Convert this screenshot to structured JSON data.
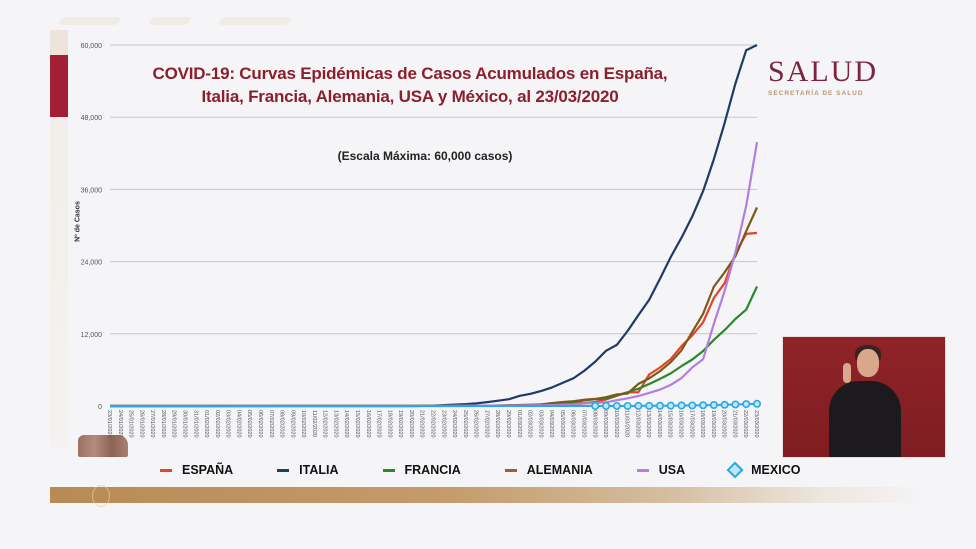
{
  "slide": {
    "title_line1": "COVID-19: Curvas Epidémicas de Casos Acumulados en España,",
    "title_line2": "Italia, Francia, Alemania, USA y México, al 23/03/2020",
    "subtitle": "(Escala Máxima: 60,000 casos)",
    "brand": {
      "name": "SALUD",
      "subtitle": "SECRETARÍA DE SALUD"
    },
    "interpreter_label": "sign-language-interpreter"
  },
  "chart_data": {
    "type": "line",
    "title": "COVID-19: Curvas Epidémicas de Casos Acumulados en España, Italia, Francia, Alemania, USA y México, al 23/03/2020",
    "subtitle": "(Escala Máxima: 60,000 casos)",
    "xlabel": "",
    "ylabel": "Nº de Casos",
    "ylim": [
      0,
      60000
    ],
    "yticks": [
      0,
      12000,
      24000,
      36000,
      48000,
      60000
    ],
    "ytick_labels": [
      "0",
      "12,000",
      "24,000",
      "36,000",
      "48,000",
      "60,000"
    ],
    "grid": true,
    "legend_position": "bottom",
    "x": [
      "23/01/2020",
      "24/01/2020",
      "25/01/2020",
      "26/01/2020",
      "27/01/2020",
      "28/01/2020",
      "29/01/2020",
      "30/01/2020",
      "31/01/2020",
      "01/02/2020",
      "02/02/2020",
      "03/02/2020",
      "04/02/2020",
      "05/02/2020",
      "06/02/2020",
      "07/02/2020",
      "08/02/2020",
      "09/02/2020",
      "10/02/2020",
      "11/02/2020",
      "12/02/2020",
      "13/02/2020",
      "14/02/2020",
      "15/02/2020",
      "16/02/2020",
      "17/02/2020",
      "18/02/2020",
      "19/02/2020",
      "20/02/2020",
      "21/02/2020",
      "22/02/2020",
      "23/02/2020",
      "24/02/2020",
      "25/02/2020",
      "26/02/2020",
      "27/02/2020",
      "28/02/2020",
      "29/02/2020",
      "01/03/2020",
      "02/03/2020",
      "03/03/2020",
      "04/03/2020",
      "05/03/2020",
      "06/03/2020",
      "07/03/2020",
      "08/03/2020",
      "09/03/2020",
      "10/03/2020",
      "11/03/2020",
      "12/03/2020",
      "13/03/2020",
      "14/03/2020",
      "15/03/2020",
      "16/03/2020",
      "17/03/2020",
      "18/03/2020",
      "19/03/2020",
      "20/03/2020",
      "21/03/2020",
      "22/03/2020",
      "23/03/2020"
    ],
    "series": [
      {
        "name": "ESPAÑA",
        "color": "#e2442a",
        "marker": "none",
        "values": [
          0,
          0,
          0,
          0,
          0,
          0,
          0,
          0,
          0,
          1,
          1,
          1,
          1,
          1,
          1,
          1,
          1,
          1,
          2,
          2,
          2,
          2,
          2,
          2,
          2,
          2,
          2,
          2,
          2,
          2,
          2,
          2,
          3,
          7,
          13,
          15,
          32,
          45,
          84,
          120,
          165,
          222,
          259,
          400,
          500,
          673,
          1073,
          1695,
          2277,
          2277,
          5232,
          6391,
          7798,
          9942,
          11748,
          13910,
          17963,
          20410,
          25374,
          28603,
          28768
        ]
      },
      {
        "name": "ITALIA",
        "color": "#1f3b68",
        "marker": "none",
        "values": [
          0,
          0,
          0,
          0,
          0,
          0,
          0,
          0,
          2,
          2,
          2,
          2,
          2,
          2,
          2,
          3,
          3,
          3,
          3,
          3,
          3,
          3,
          3,
          3,
          3,
          3,
          3,
          3,
          3,
          20,
          62,
          155,
          229,
          322,
          453,
          655,
          888,
          1128,
          1694,
          2036,
          2502,
          3089,
          3858,
          4636,
          5883,
          7375,
          9172,
          10149,
          12462,
          15113,
          17660,
          21157,
          24747,
          27980,
          31506,
          35713,
          41035,
          47021,
          53578,
          59138,
          63927
        ]
      },
      {
        "name": "FRANCIA",
        "color": "#2a8a2a",
        "marker": "none",
        "values": [
          0,
          0,
          2,
          3,
          3,
          3,
          4,
          5,
          5,
          6,
          6,
          6,
          6,
          6,
          6,
          6,
          11,
          11,
          11,
          11,
          11,
          11,
          11,
          12,
          12,
          12,
          12,
          12,
          12,
          12,
          12,
          12,
          12,
          14,
          18,
          38,
          57,
          100,
          130,
          191,
          204,
          285,
          377,
          653,
          949,
          1126,
          1209,
          1784,
          2284,
          2876,
          3661,
          4499,
          5423,
          6633,
          7730,
          9134,
          10995,
          12612,
          14459,
          16018,
          19856
        ]
      },
      {
        "name": "ALEMANIA",
        "color": "#7a5a1a",
        "marker": "none",
        "values": [
          0,
          0,
          0,
          0,
          1,
          4,
          4,
          4,
          5,
          8,
          10,
          12,
          12,
          12,
          12,
          13,
          13,
          14,
          14,
          16,
          16,
          16,
          16,
          16,
          16,
          16,
          16,
          16,
          16,
          16,
          16,
          16,
          16,
          18,
          26,
          48,
          79,
          130,
          159,
          196,
          262,
          482,
          670,
          799,
          1040,
          1176,
          1457,
          1908,
          2078,
          3675,
          4585,
          5795,
          7272,
          9257,
          12327,
          15320,
          19848,
          22213,
          24873,
          29056,
          32991
        ]
      },
      {
        "name": "USA",
        "color": "#b27ee0",
        "marker": "none",
        "values": [
          1,
          1,
          2,
          2,
          5,
          5,
          5,
          5,
          6,
          6,
          8,
          8,
          11,
          11,
          11,
          12,
          12,
          12,
          12,
          13,
          13,
          14,
          15,
          15,
          15,
          15,
          15,
          15,
          15,
          35,
          35,
          35,
          53,
          53,
          59,
          60,
          62,
          70,
          76,
          101,
          122,
          153,
          221,
          278,
          417,
          537,
          605,
          959,
          1281,
          1663,
          2179,
          2726,
          3499,
          4632,
          6421,
          7786,
          13680,
          19101,
          25493,
          33276,
          43847
        ]
      },
      {
        "name": "MEXICO",
        "color": "#29a8e3",
        "marker": "diamond",
        "values": [
          0,
          0,
          0,
          0,
          0,
          0,
          0,
          0,
          0,
          0,
          0,
          0,
          0,
          0,
          0,
          0,
          0,
          0,
          0,
          0,
          0,
          0,
          0,
          0,
          0,
          0,
          0,
          0,
          0,
          0,
          0,
          0,
          0,
          0,
          0,
          0,
          2,
          4,
          5,
          5,
          5,
          5,
          5,
          6,
          6,
          7,
          7,
          7,
          8,
          12,
          26,
          41,
          53,
          82,
          93,
          118,
          164,
          203,
          251,
          316,
          367
        ]
      }
    ]
  }
}
